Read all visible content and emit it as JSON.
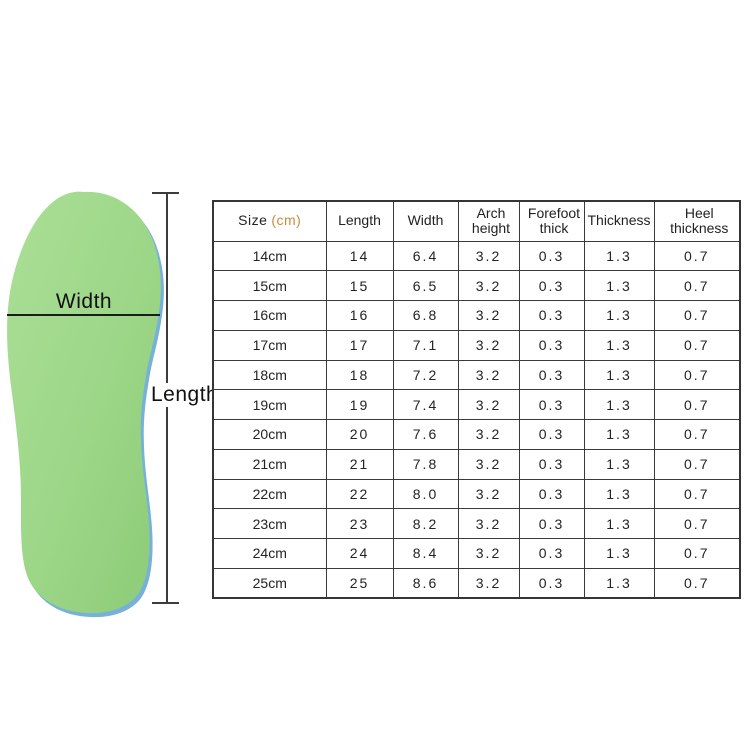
{
  "figure": {
    "width_label": "Width",
    "length_label": "Length",
    "insole_color": "#9cd687",
    "insole_edge_color": "#78b1d8",
    "line_color": "#3c3c3c"
  },
  "table": {
    "header": {
      "size_label": "Size",
      "size_unit": "(cm)",
      "columns": [
        "Length",
        "Width",
        "Arch height",
        "Forefoot thick",
        "Thickness",
        "Heel thickness"
      ]
    },
    "unit_color": "#cd8a3d",
    "rows": [
      {
        "size": "14cm",
        "length": "14",
        "width": "6.4",
        "arch_height": "3.2",
        "forefoot_thick": "0.3",
        "thickness": "1.3",
        "heel_thickness": "0.7"
      },
      {
        "size": "15cm",
        "length": "15",
        "width": "6.5",
        "arch_height": "3.2",
        "forefoot_thick": "0.3",
        "thickness": "1.3",
        "heel_thickness": "0.7"
      },
      {
        "size": "16cm",
        "length": "16",
        "width": "6.8",
        "arch_height": "3.2",
        "forefoot_thick": "0.3",
        "thickness": "1.3",
        "heel_thickness": "0.7"
      },
      {
        "size": "17cm",
        "length": "17",
        "width": "7.1",
        "arch_height": "3.2",
        "forefoot_thick": "0.3",
        "thickness": "1.3",
        "heel_thickness": "0.7"
      },
      {
        "size": "18cm",
        "length": "18",
        "width": "7.2",
        "arch_height": "3.2",
        "forefoot_thick": "0.3",
        "thickness": "1.3",
        "heel_thickness": "0.7"
      },
      {
        "size": "19cm",
        "length": "19",
        "width": "7.4",
        "arch_height": "3.2",
        "forefoot_thick": "0.3",
        "thickness": "1.3",
        "heel_thickness": "0.7"
      },
      {
        "size": "20cm",
        "length": "20",
        "width": "7.6",
        "arch_height": "3.2",
        "forefoot_thick": "0.3",
        "thickness": "1.3",
        "heel_thickness": "0.7"
      },
      {
        "size": "21cm",
        "length": "21",
        "width": "7.8",
        "arch_height": "3.2",
        "forefoot_thick": "0.3",
        "thickness": "1.3",
        "heel_thickness": "0.7"
      },
      {
        "size": "22cm",
        "length": "22",
        "width": "8.0",
        "arch_height": "3.2",
        "forefoot_thick": "0.3",
        "thickness": "1.3",
        "heel_thickness": "0.7"
      },
      {
        "size": "23cm",
        "length": "23",
        "width": "8.2",
        "arch_height": "3.2",
        "forefoot_thick": "0.3",
        "thickness": "1.3",
        "heel_thickness": "0.7"
      },
      {
        "size": "24cm",
        "length": "24",
        "width": "8.4",
        "arch_height": "3.2",
        "forefoot_thick": "0.3",
        "thickness": "1.3",
        "heel_thickness": "0.7"
      },
      {
        "size": "25cm",
        "length": "25",
        "width": "8.6",
        "arch_height": "3.2",
        "forefoot_thick": "0.3",
        "thickness": "1.3",
        "heel_thickness": "0.7"
      }
    ]
  }
}
